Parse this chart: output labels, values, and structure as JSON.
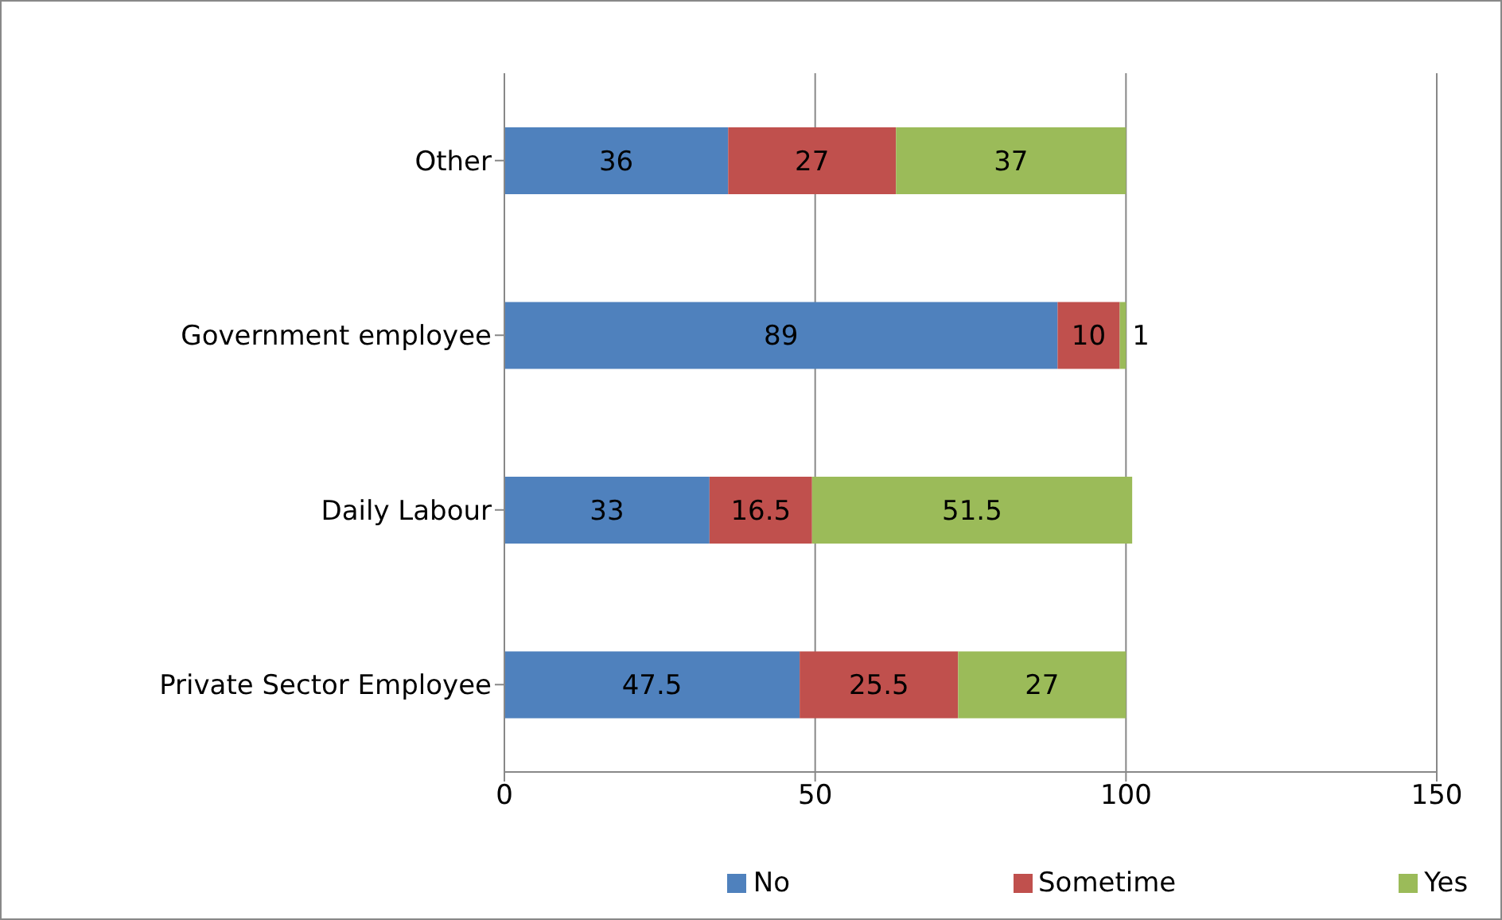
{
  "chart_data": {
    "type": "bar",
    "orientation": "horizontal",
    "stacked": true,
    "categories": [
      "Other",
      "Government  employee",
      "Daily Labour",
      "Private Sector Employee"
    ],
    "series": [
      {
        "name": "No",
        "color": "#4f81bd",
        "values": [
          36,
          89,
          33,
          47.5
        ]
      },
      {
        "name": "Sometime",
        "color": "#c0504d",
        "values": [
          27,
          10,
          16.5,
          25.5
        ]
      },
      {
        "name": "Yes",
        "color": "#9bbb59",
        "values": [
          37,
          1,
          51.5,
          27
        ]
      }
    ],
    "xlim": [
      0,
      150
    ],
    "xticks": [
      0,
      50,
      100,
      150
    ],
    "grid": "x",
    "legend": "bottom",
    "data_labels": true
  }
}
